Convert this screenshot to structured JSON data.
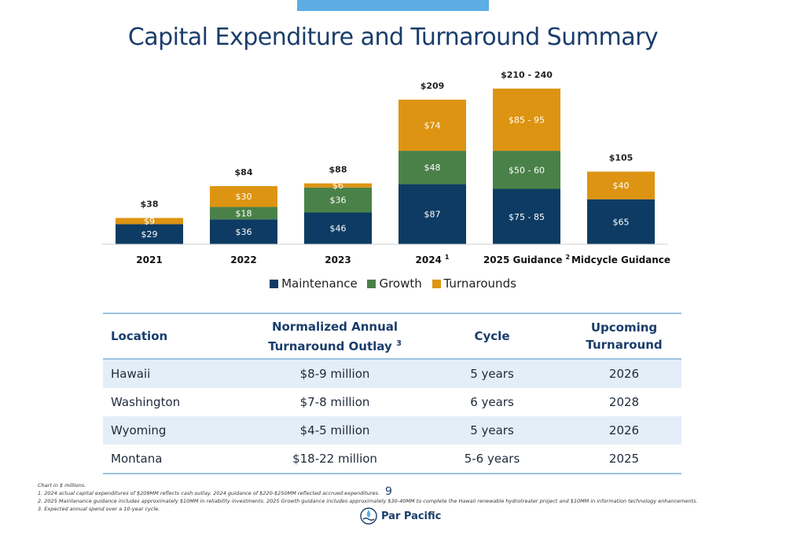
{
  "title": "Capital Expenditure and Turnaround Summary",
  "colors": {
    "maintenance": "#0d3b63",
    "growth": "#4a8148",
    "turnarounds": "#dd9412",
    "accent": "#5dade2",
    "heading": "#1a3d6b"
  },
  "chart_data": {
    "type": "bar",
    "stacked": true,
    "unit": "$ millions",
    "categories": [
      "2021",
      "2022",
      "2023",
      "2024",
      "2025 Guidance",
      "Midcycle Guidance"
    ],
    "category_superscripts": [
      "",
      "",
      "",
      "1",
      "2",
      ""
    ],
    "series": [
      {
        "name": "Maintenance",
        "values": [
          29,
          36,
          46,
          87,
          80,
          65
        ],
        "labels": [
          "$29",
          "$36",
          "$46",
          "$87",
          "$75 - 85",
          "$65"
        ]
      },
      {
        "name": "Growth",
        "values": [
          0,
          18,
          36,
          48,
          55,
          0
        ],
        "labels": [
          "",
          "$18",
          "$36",
          "$48",
          "$50 - 60",
          ""
        ]
      },
      {
        "name": "Turnarounds",
        "values": [
          9,
          30,
          6,
          74,
          90,
          40
        ],
        "labels": [
          "$9",
          "$30",
          "$6",
          "$74",
          "$85 - 95",
          "$40"
        ]
      }
    ],
    "totals": [
      "$38",
      "$84",
      "$88",
      "$209",
      "$210 - 240",
      "$105"
    ],
    "ylim": [
      0,
      240
    ],
    "legend": "bottom-center",
    "grid": false
  },
  "legend": [
    "Maintenance",
    "Growth",
    "Turnarounds"
  ],
  "table": {
    "headers": [
      "Location",
      "Normalized Annual",
      "Turnaround Outlay",
      "3",
      "Cycle",
      "Upcoming Turnaround"
    ],
    "rows": [
      [
        "Hawaii",
        "$8-9 million",
        "5 years",
        "2026"
      ],
      [
        "Washington",
        "$7-8 million",
        "6 years",
        "2028"
      ],
      [
        "Wyoming",
        "$4-5 million",
        "5 years",
        "2026"
      ],
      [
        "Montana",
        "$18-22 million",
        "5-6 years",
        "2025"
      ]
    ]
  },
  "page_number": "9",
  "footnotes": [
    "Chart in $ millions.",
    "1. 2024 actual capital expenditures of $209MM reflects cash outlay. 2024 guidance of $220-$250MM reflected accrued expenditures.",
    "2. 2025 Maintenance guidance includes approximately $10MM in reliability investments. 2025 Growth guidance includes approximately $30-40MM to complete the Hawaii renewable hydrotreater project and $10MM in information technology enhancements.",
    "3. Expected annual spend over a 10-year cycle."
  ],
  "logo_text": "Par Pacific"
}
